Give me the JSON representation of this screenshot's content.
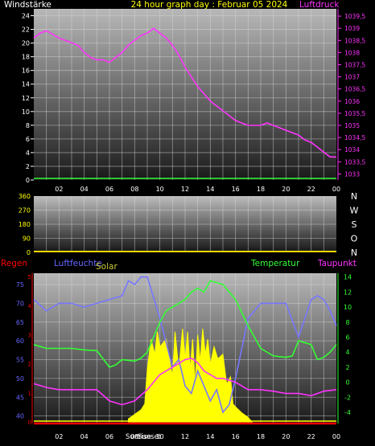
{
  "title": "24 hour graph day : Februar 05 2024",
  "chart_data": [
    {
      "type": "line",
      "left_label": "Windstärke",
      "right_label": "Luftdruck",
      "x_ticks": [
        "02",
        "04",
        "06",
        "08",
        "10",
        "12",
        "14",
        "16",
        "18",
        "20",
        "22",
        "00"
      ],
      "left_axis": {
        "ticks": [
          0,
          2,
          4,
          6,
          8,
          10,
          12,
          14,
          16,
          18,
          20,
          22,
          24
        ],
        "range": [
          0,
          25
        ],
        "color": "#ffffff"
      },
      "right_axis": {
        "ticks": [
          "1033",
          "1033,5",
          "1034",
          "1034,5",
          "1035",
          "1035,5",
          "1036",
          "1036,5",
          "1037",
          "1037,5",
          "1038",
          "1038,5",
          "1039",
          "1039,5"
        ],
        "range": [
          1032.75,
          1039.8
        ],
        "color": "#ff33ff"
      },
      "series": [
        {
          "name": "Luftdruck",
          "color": "#ff33ff",
          "axis": "right",
          "x": [
            0,
            0.5,
            1,
            2,
            2.5,
            3,
            3.5,
            4,
            4.5,
            5,
            5.5,
            6,
            6.5,
            7,
            7.5,
            8,
            8.5,
            9,
            9.5,
            10,
            10.5,
            11,
            11.5,
            12,
            12.5,
            13,
            13.5,
            14,
            14.5,
            15,
            15.5,
            16,
            16.5,
            17,
            17.5,
            18,
            18.5,
            19,
            19.5,
            20,
            20.5,
            21,
            21.5,
            22,
            22.5,
            23,
            23.5,
            24
          ],
          "y": [
            1038.6,
            1038.8,
            1038.9,
            1038.6,
            1038.5,
            1038.4,
            1038.3,
            1038.0,
            1037.8,
            1037.7,
            1037.7,
            1037.6,
            1037.8,
            1038.0,
            1038.3,
            1038.5,
            1038.7,
            1038.8,
            1039.0,
            1038.8,
            1038.6,
            1038.3,
            1037.9,
            1037.4,
            1037.0,
            1036.6,
            1036.3,
            1036.0,
            1035.8,
            1035.6,
            1035.4,
            1035.2,
            1035.1,
            1035.0,
            1035.0,
            1035.0,
            1035.1,
            1035.0,
            1034.9,
            1034.8,
            1034.7,
            1034.6,
            1034.4,
            1034.3,
            1034.1,
            1033.9,
            1033.7,
            1033.7
          ]
        },
        {
          "name": "Windstärke",
          "color": "#33ff33",
          "axis": "left",
          "x": [
            0,
            24
          ],
          "y": [
            0,
            0
          ]
        }
      ]
    },
    {
      "type": "line",
      "right_labels": [
        "N",
        "W",
        "S",
        "O",
        "N"
      ],
      "left_axis": {
        "ticks": [
          0,
          90,
          180,
          270,
          360
        ],
        "range": [
          0,
          360
        ]
      },
      "series": [
        {
          "name": "",
          "color": "#ffd700",
          "axis": "left",
          "x": [
            0,
            24
          ],
          "y": [
            0,
            0
          ]
        }
      ]
    },
    {
      "type": "line",
      "legend": [
        "Regen",
        "Luftfeuchte",
        "Solar",
        "Temperatur",
        "Taupunkt"
      ],
      "legend_colors": {
        "Regen": "#ff0000",
        "Luftfeuchte": "#6666ff",
        "Solar": "#cccc33",
        "Temperatur": "#33ff33",
        "Taupunkt": "#ff33ff"
      },
      "x_ticks": [
        "02",
        "04",
        "06",
        "08",
        "10",
        "12",
        "14",
        "16",
        "18",
        "20",
        "22",
        "00"
      ],
      "sun_labels": [
        "Sunrise",
        "Sunset"
      ],
      "left_axis": {
        "ticks": [
          40,
          45,
          50,
          55,
          60,
          65,
          70,
          75
        ],
        "range": [
          38,
          78
        ],
        "color": "#6666ff"
      },
      "right_axis": {
        "ticks": [
          -4,
          -2,
          0,
          2,
          4,
          6,
          8,
          10,
          12,
          14
        ],
        "range": [
          -5.5,
          14.5
        ],
        "color": "#33ff33"
      },
      "regen_ticks": [
        0,
        1,
        2,
        3,
        4,
        5
      ],
      "series": [
        {
          "name": "Luftfeuchte",
          "color": "#7777ff",
          "axis": "left",
          "x": [
            0,
            1,
            2,
            3,
            4,
            5,
            6,
            7,
            7.5,
            8,
            8.5,
            9,
            10,
            11,
            11.5,
            12,
            12.5,
            13,
            13.5,
            14,
            14.5,
            15,
            15.5,
            16,
            17,
            18,
            19,
            20,
            21,
            22,
            22.5,
            23,
            23.5,
            24
          ],
          "y": [
            71,
            68,
            70,
            70,
            69,
            70,
            71,
            72,
            76,
            75,
            77,
            77,
            66,
            53,
            55,
            48,
            46,
            52,
            48,
            44,
            47,
            41,
            43,
            50,
            66,
            70,
            70,
            70,
            61,
            71,
            72,
            71,
            68,
            64
          ]
        },
        {
          "name": "Temperatur",
          "color": "#33ff33",
          "axis": "right",
          "x": [
            0,
            1,
            2,
            3,
            4,
            5,
            6,
            6.5,
            7,
            8,
            8.5,
            9,
            10,
            10.5,
            11,
            11.5,
            12,
            12.5,
            13,
            13.5,
            14,
            15,
            16,
            17,
            18,
            19,
            20,
            20.5,
            21,
            22,
            22.5,
            23,
            23.5,
            24
          ],
          "y": [
            5.0,
            4.5,
            4.5,
            4.5,
            4.3,
            4.2,
            2.0,
            2.3,
            3.0,
            2.8,
            3.2,
            4.0,
            8.0,
            9.5,
            10.0,
            10.5,
            11.0,
            12.0,
            12.5,
            12.0,
            13.5,
            13.0,
            11.0,
            7.5,
            4.5,
            3.5,
            3.3,
            3.5,
            5.5,
            5.0,
            3.0,
            3.3,
            4.0,
            5.0
          ]
        },
        {
          "name": "Taupunkt",
          "color": "#ff33ff",
          "axis": "right",
          "x": [
            0,
            1,
            2,
            3,
            4,
            5,
            6,
            7,
            8,
            9,
            10,
            11,
            11.5,
            12,
            12.5,
            13,
            13.5,
            14,
            14.5,
            15,
            16,
            17,
            18,
            19,
            20,
            21,
            22,
            22.5,
            23,
            24
          ],
          "y": [
            -0.2,
            -0.7,
            -1.0,
            -1.0,
            -1.0,
            -1.0,
            -2.5,
            -3.0,
            -2.5,
            -1.0,
            1.0,
            2.0,
            2.5,
            3.0,
            3.2,
            2.6,
            1.5,
            1.0,
            0.5,
            0.5,
            0.0,
            -1.0,
            -1.0,
            -1.2,
            -1.5,
            -1.5,
            -1.8,
            -1.5,
            -1.2,
            -1.0
          ]
        },
        {
          "name": "Regen",
          "color": "#ff0000",
          "axis": "regen",
          "x": [
            0,
            24
          ],
          "y": [
            0,
            0
          ]
        },
        {
          "name": "Solar",
          "color": "#ffff00",
          "axis": "solar",
          "type": "area",
          "x": [
            7.5,
            8.0,
            8.5,
            8.8,
            9.0,
            9.3,
            9.6,
            9.8,
            10.0,
            10.5,
            11.0,
            11.2,
            11.5,
            11.8,
            12.0,
            12.2,
            12.4,
            12.6,
            12.8,
            13.0,
            13.2,
            13.4,
            13.6,
            13.8,
            14.0,
            14.3,
            14.6,
            15.0,
            15.3,
            15.6,
            15.8,
            16.0,
            16.5,
            17.0,
            17.3
          ],
          "y": [
            0.02,
            0.05,
            0.08,
            0.12,
            0.35,
            0.55,
            0.45,
            0.6,
            0.5,
            0.55,
            0.3,
            0.6,
            0.35,
            0.62,
            0.42,
            0.6,
            0.35,
            0.55,
            0.25,
            0.58,
            0.4,
            0.62,
            0.45,
            0.55,
            0.38,
            0.5,
            0.42,
            0.45,
            0.25,
            0.3,
            0.12,
            0.1,
            0.06,
            0.03,
            0.0
          ]
        }
      ]
    }
  ]
}
